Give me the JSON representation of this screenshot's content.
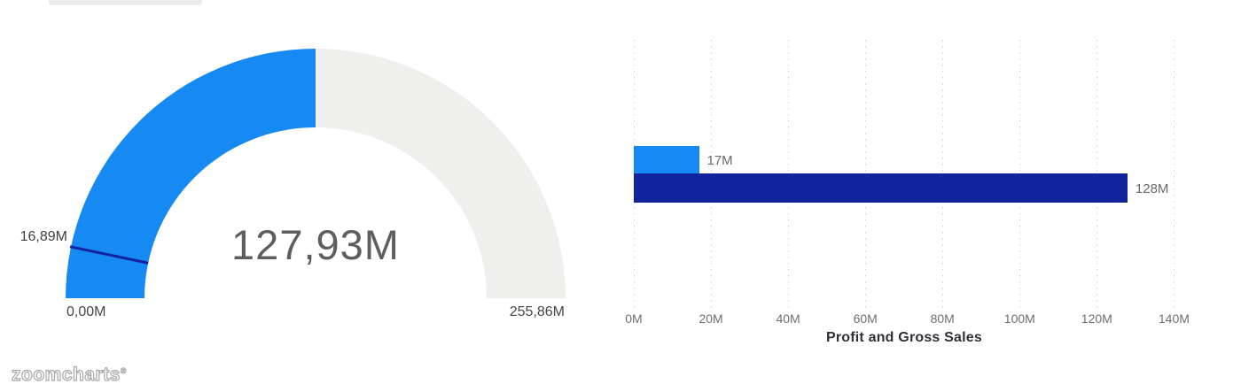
{
  "watermark": {
    "text": "zoomcharts",
    "mark": "®"
  },
  "colors": {
    "accent_blue": "#1789F2",
    "accent_navy": "#12239E",
    "gauge_track": "#EFEFED",
    "gridline": "#CFCFCF"
  },
  "chart_data": [
    {
      "type": "gauge",
      "value": 127.93,
      "min": 0.0,
      "max": 255.86,
      "target": 16.89,
      "value_label": "127,93M",
      "min_label": "0,00M",
      "max_label": "255,86M",
      "target_label": "16,89M",
      "fill_color": "#1789F2",
      "track_color": "#EFEFED",
      "target_line_color": "#12239E"
    },
    {
      "type": "bar",
      "orientation": "horizontal",
      "xlabel": "Profit and Gross Sales",
      "xlim": [
        0,
        140
      ],
      "grid": "dotted-vertical",
      "legend": "none",
      "x_ticks": [
        {
          "value": 0,
          "label": "0M"
        },
        {
          "value": 20,
          "label": "20M"
        },
        {
          "value": 40,
          "label": "40M"
        },
        {
          "value": 60,
          "label": "60M"
        },
        {
          "value": 80,
          "label": "80M"
        },
        {
          "value": 100,
          "label": "100M"
        },
        {
          "value": 120,
          "label": "120M"
        },
        {
          "value": 140,
          "label": "140M"
        }
      ],
      "series": [
        {
          "name": "Profit",
          "value": 16.89,
          "label": "17M",
          "color": "#1789F2"
        },
        {
          "name": "Gross Sales",
          "value": 127.93,
          "label": "128M",
          "color": "#12239E"
        }
      ]
    }
  ]
}
